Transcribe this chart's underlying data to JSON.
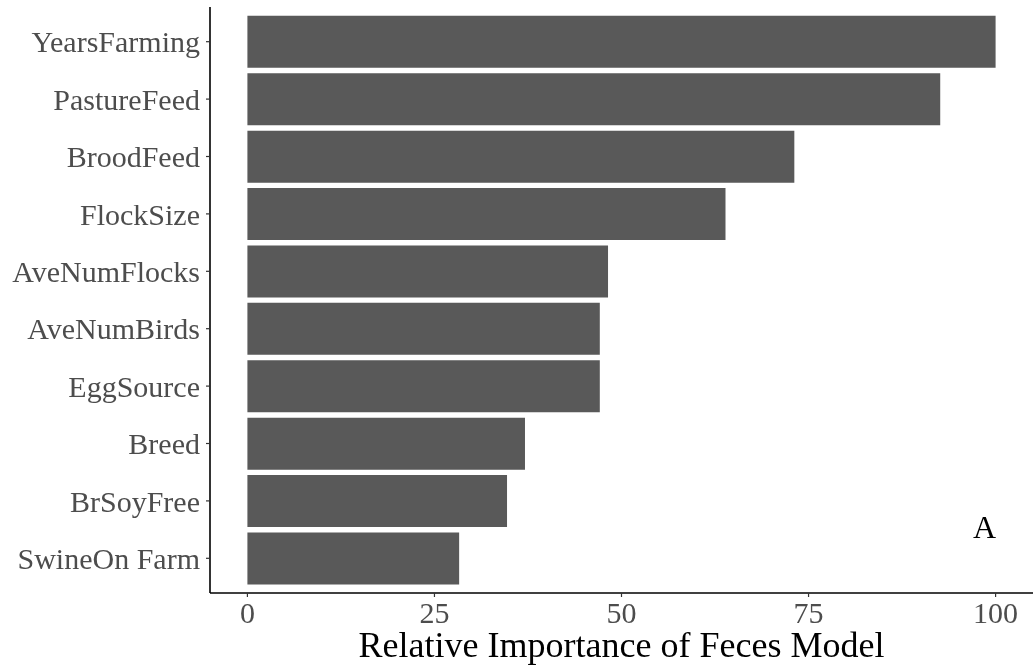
{
  "chart_data": {
    "type": "bar",
    "orientation": "horizontal",
    "categories": [
      "YearsFarming",
      "PastureFeed",
      "BroodFeed",
      "FlockSize",
      "AveNumFlocks",
      "AveNumBirds",
      "EggSource",
      "Breed",
      "BrSoyFree",
      "SwineOn Farm"
    ],
    "values": [
      100,
      92.6,
      73.1,
      63.9,
      48.2,
      47.1,
      47.1,
      37.1,
      34.7,
      28.3
    ],
    "color": "#595959",
    "xlabel": "Relative Importance of Feces Model",
    "xlim": [
      -5,
      105
    ],
    "xticks": [
      0,
      25,
      50,
      75,
      100
    ],
    "annotations": [
      "A"
    ]
  }
}
